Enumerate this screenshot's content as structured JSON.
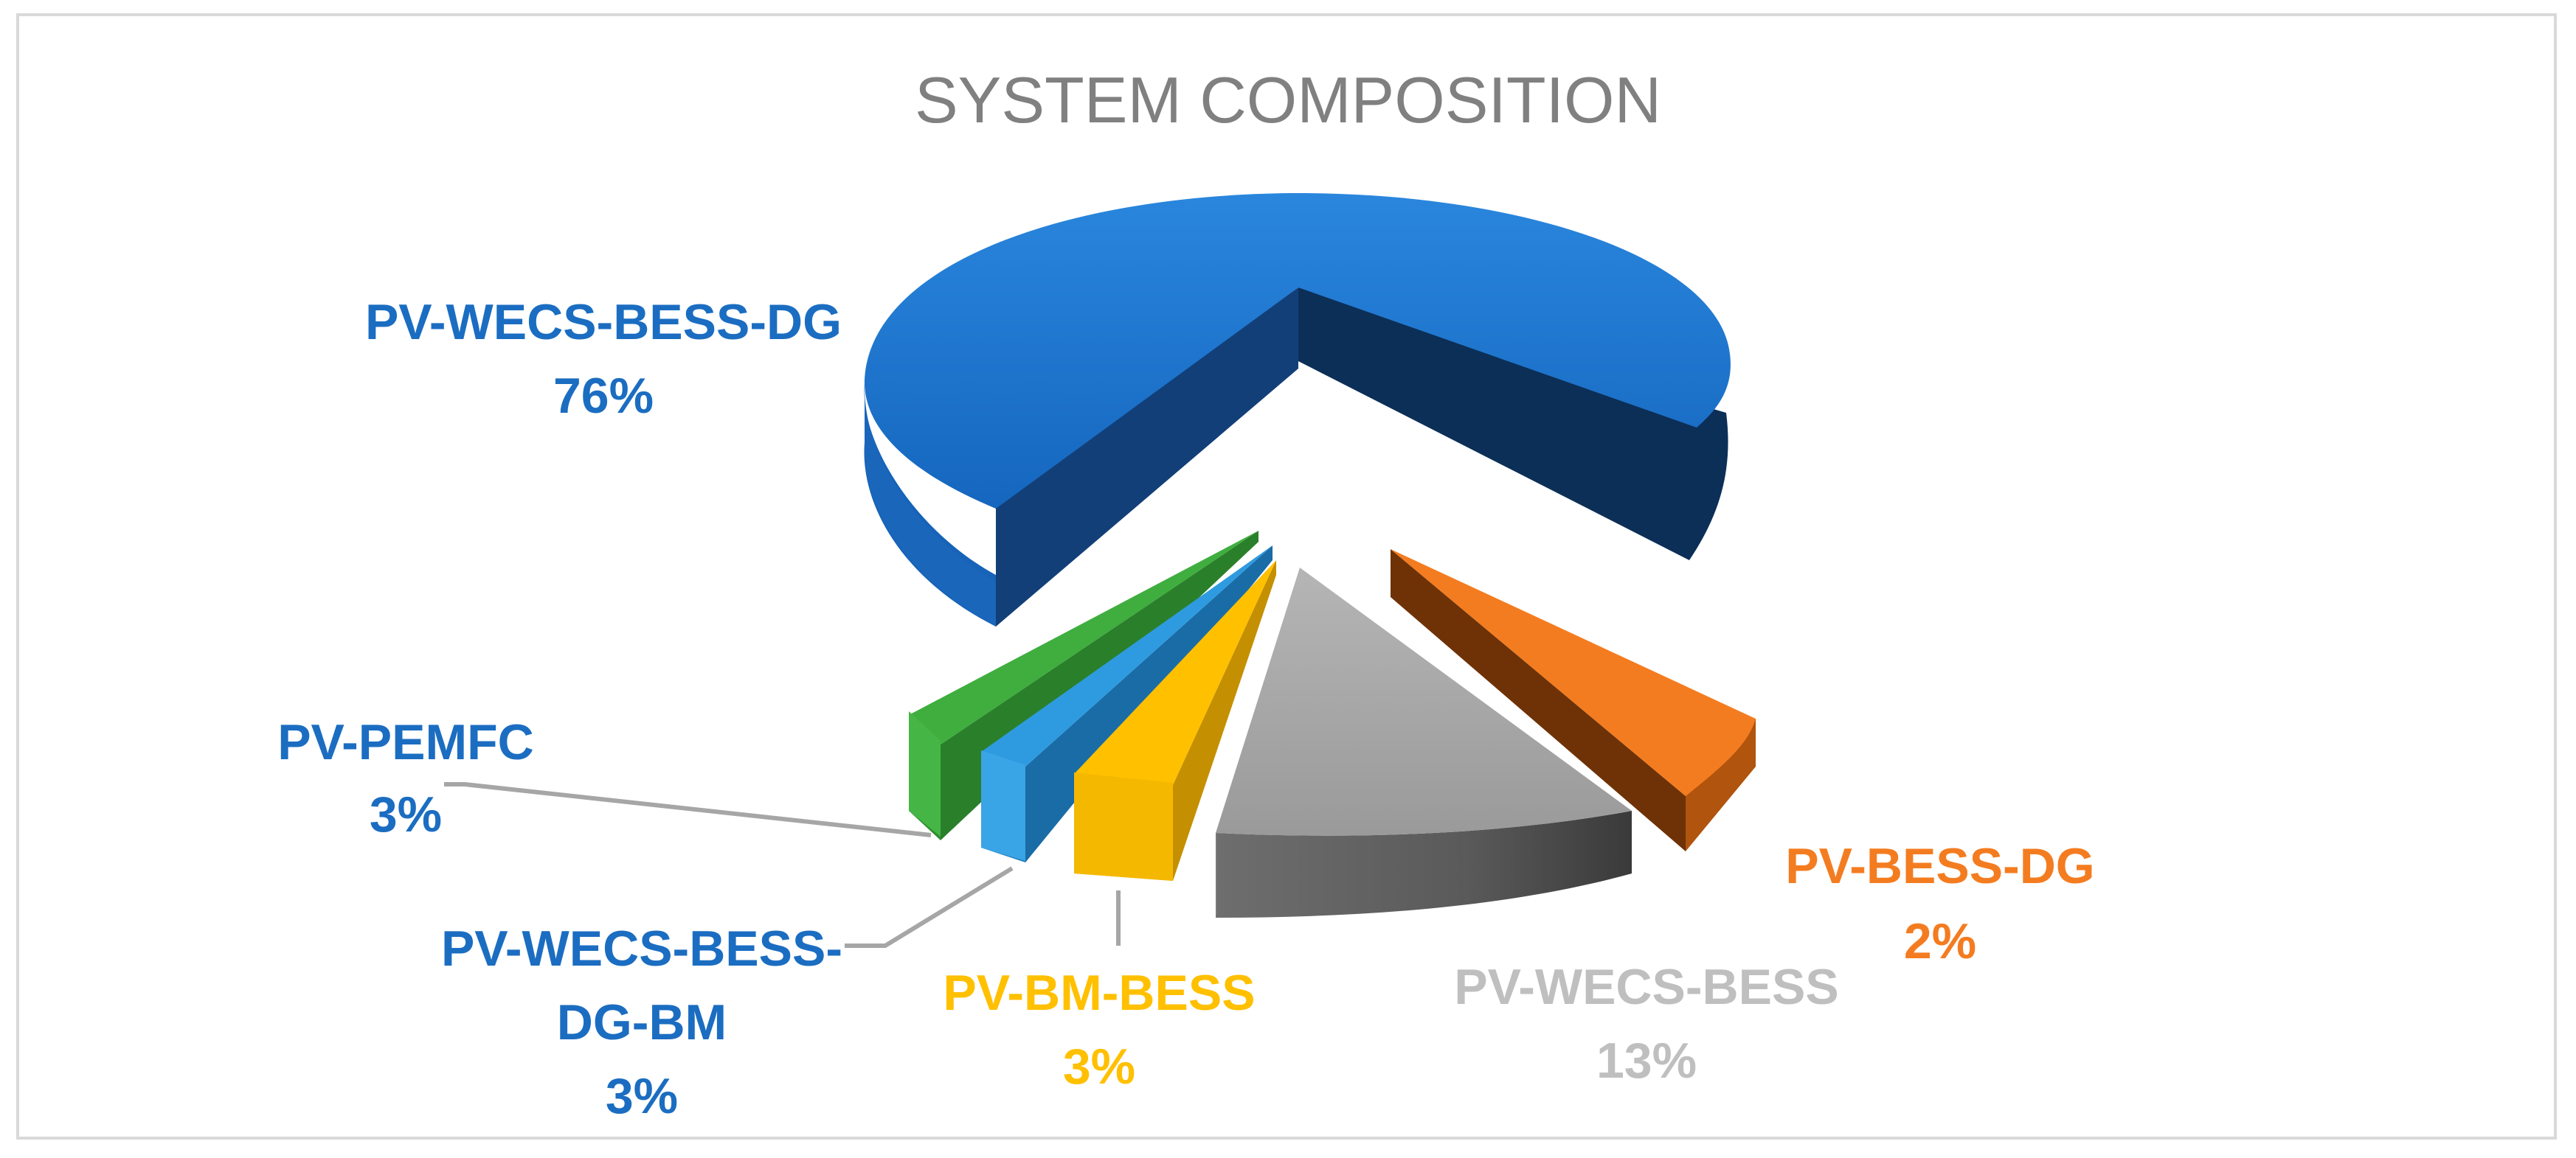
{
  "chart_data": {
    "type": "pie",
    "style": "3d-exploded",
    "title": "SYSTEM COMPOSITION",
    "legend": "none",
    "slices": [
      {
        "label": "PV-WECS-BESS-DG",
        "value": 76,
        "value_label": "76%",
        "color": "#1f77d0"
      },
      {
        "label": "PV-BESS-DG",
        "value": 2,
        "value_label": "2%",
        "color": "#f47c20"
      },
      {
        "label": "PV-WECS-BESS",
        "value": 13,
        "value_label": "13%",
        "color": "#a6a6a6"
      },
      {
        "label": "PV-BM-BESS",
        "value": 3,
        "value_label": "3%",
        "color": "#ffc000"
      },
      {
        "label": "PV-WECS-BESS-DG-BM",
        "value": 3,
        "value_label": "3%",
        "color": "#2e9be0"
      },
      {
        "label": "PV-PEMFC",
        "value": 3,
        "value_label": "3%",
        "color": "#3fae3f"
      }
    ]
  },
  "labels": {
    "pv_wecs_bess_dg": {
      "line1": "PV-WECS-BESS-DG",
      "value": "76%",
      "color": "#1b6dc1"
    },
    "pv_pemfc": {
      "line1": "PV-PEMFC",
      "value": "3%",
      "color": "#1b6dc1"
    },
    "pv_wecs_bess_dg_bm": {
      "line1": "PV-WECS-BESS-",
      "line2": "DG-BM",
      "value": "3%",
      "color": "#1b6dc1"
    },
    "pv_bm_bess": {
      "line1": "PV-BM-BESS",
      "value": "3%",
      "color": "#ffc000"
    },
    "pv_wecs_bess": {
      "line1": "PV-WECS-BESS",
      "value": "13%",
      "color": "#bfbfbf"
    },
    "pv_bess_dg": {
      "line1": "PV-BESS-DG",
      "value": "2%",
      "color": "#f47c20"
    }
  }
}
